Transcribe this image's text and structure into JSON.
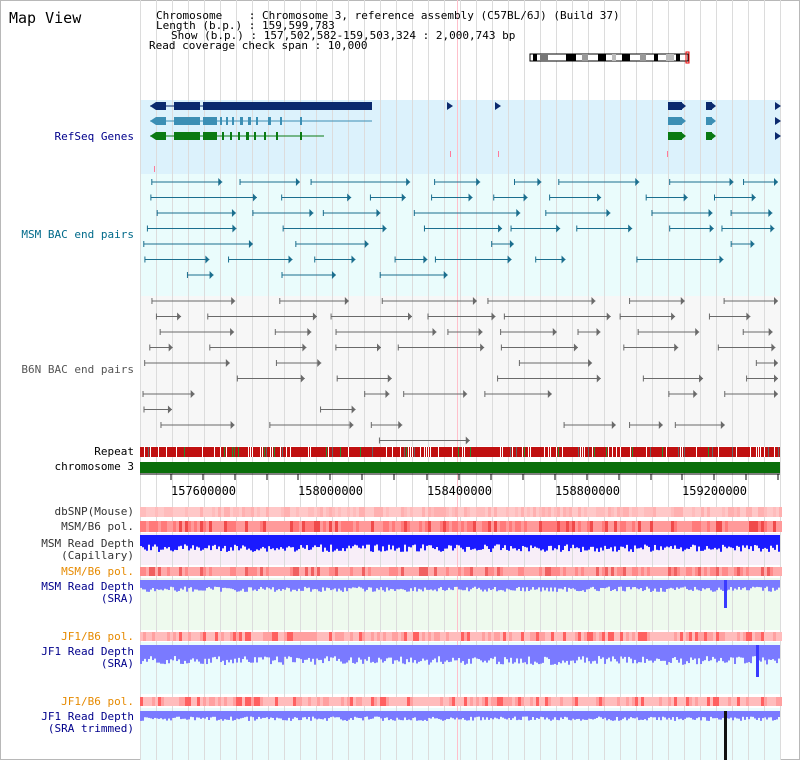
{
  "header": {
    "title": "Map View",
    "chromosome_line": "Chromosome    : Chromosome 3, reference assembly (C57BL/6J) (Build 37)",
    "length_line": "Length (b.p.) : 159,599,783",
    "show_line": "Show (b.p.) : 157,502,582-159,503,324 : 2,000,743 bp",
    "coverage_line": "Read coverage check span : 10,000"
  },
  "tracks": {
    "refseq": "RefSeq Genes",
    "msm_bac": "MSM BAC end pairs",
    "b6n_bac": "B6N BAC end pairs",
    "repeat": "Repeat",
    "chromosome": "chromosome 3",
    "dbsnp": "dbSNP(Mouse)",
    "msm_b6_pol_1": "MSM/B6 pol.",
    "msm_read_depth_cap": "MSM Read Depth\n(Capillary)",
    "msm_b6_pol_2": "MSM/B6 pol.",
    "msm_read_depth_sra": "MSM Read Depth\n(SRA)",
    "jf1_b6_pol_1": "JF1/B6 pol.",
    "jf1_read_depth_sra": "JF1 Read Depth\n(SRA)",
    "jf1_b6_pol_2": "JF1/B6 pol.",
    "jf1_read_depth_trim": "JF1 Read Depth\n(SRA trimmed)"
  },
  "axis": {
    "ticks": [
      "157600000",
      "158000000",
      "158400000",
      "158800000",
      "159200000"
    ]
  },
  "colors": {
    "refseq_bg": "#dcf2fc",
    "gene_navy": "#0b2a6e",
    "gene_steel": "#3c8fb4",
    "gene_green": "#0a7a12",
    "msm_bac": "#1b6e8e",
    "b6n_bac": "#6a6a6a",
    "chromosome": "#0a6e0a",
    "depth_blue": "#1a1aff",
    "depth_light": "#7a7aff",
    "label_navy": "#00008b",
    "label_teal": "#006a8a",
    "label_orange": "#e68a00"
  }
}
